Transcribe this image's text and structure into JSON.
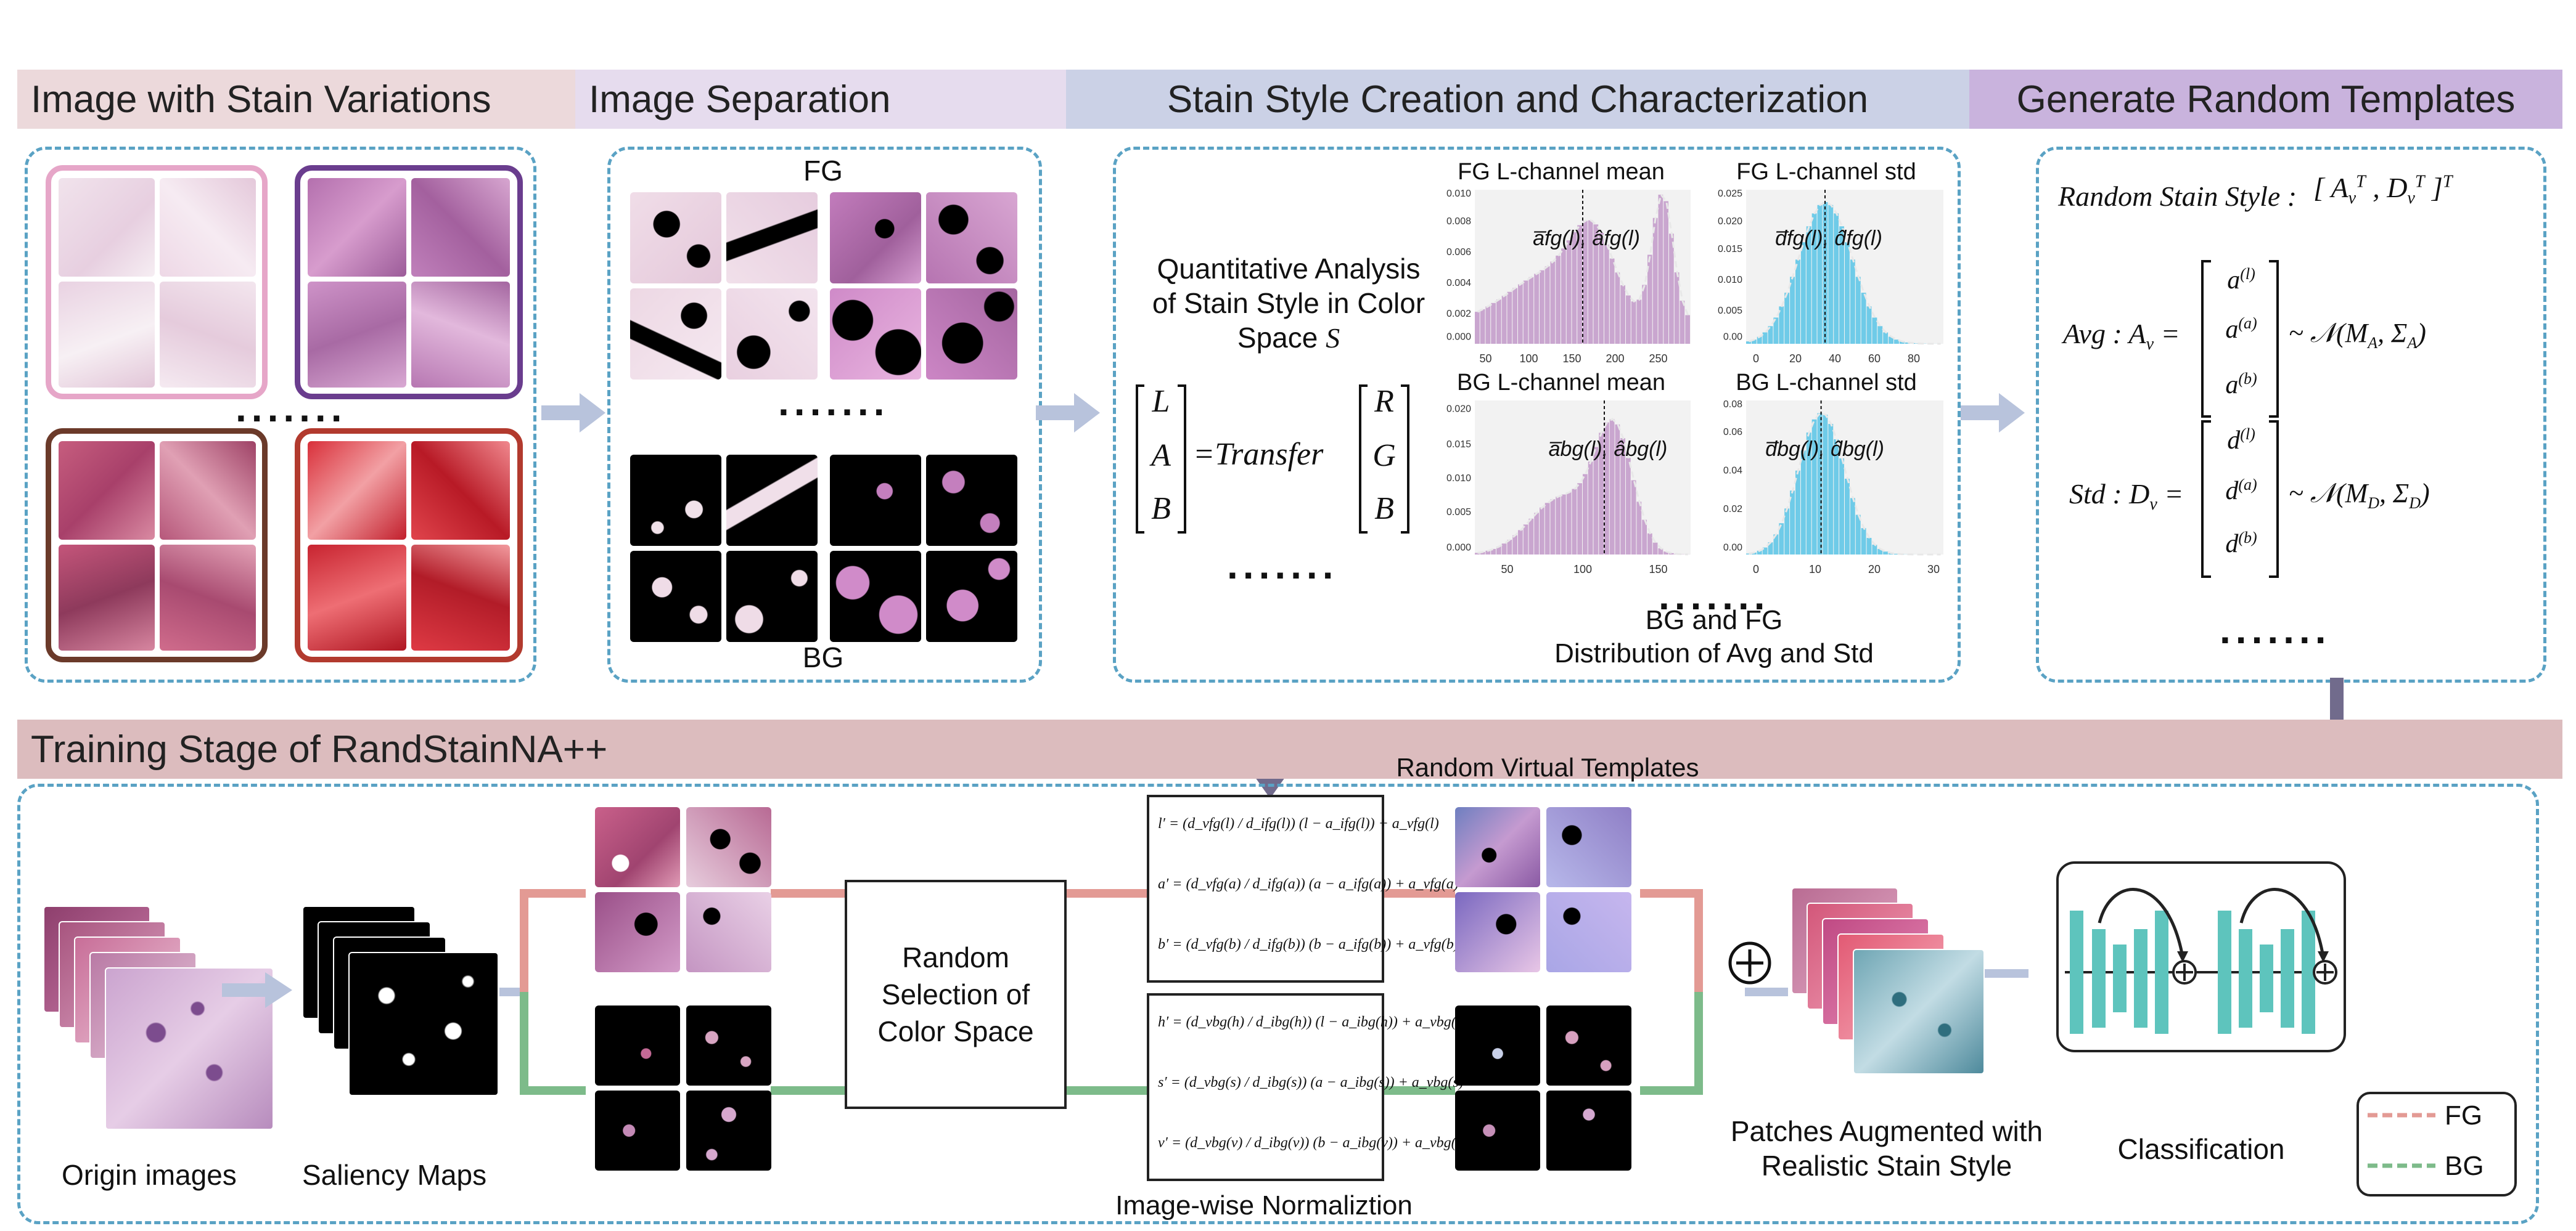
{
  "stages": {
    "image_with_stain_variations": "Image with Stain Variations",
    "image_separation": "Image Separation",
    "stain_style_creation": "Stain Style Creation and Characterization",
    "generate_random_templates": "Generate Random Templates",
    "training_stage": "Training Stage of RandStainNA++"
  },
  "separation": {
    "fg": "FG",
    "bg": "BG"
  },
  "characterization": {
    "analysis_text_1": "Quantitative Analysis",
    "analysis_text_2": "of Stain Style in Color",
    "analysis_text_3": "Space",
    "space_symbol": "S",
    "matrix_left": [
      "L",
      "A",
      "B"
    ],
    "matrix_right": [
      "R",
      "G",
      "B"
    ],
    "transfer_label": "=Transfer",
    "hist_titles": [
      "FG L-channel mean",
      "FG L-channel std",
      "BG L-channel mean",
      "BG L-channel std"
    ],
    "caption_1": "BG and FG",
    "caption_2": "Distribution of Avg and Std",
    "hist_annotations": [
      "a̅fg(l), âfg(l)",
      "d̅fg(l), d̂fg(l)",
      "a̅bg(l), âbg(l)",
      "d̅bg(l), d̂bg(l)"
    ]
  },
  "templates": {
    "random_style_label": "Random Stain Style :",
    "random_style_vector": "[A_v^T, D_v^T]^T",
    "avg_label": "Avg : A_v =",
    "avg_vector": [
      "a(l)",
      "a(a)",
      "a(b)"
    ],
    "avg_dist": "~ N(M_A, Σ_A)",
    "std_label": "Std : D_v =",
    "std_vector": [
      "d(l)",
      "d(a)",
      "d(b)"
    ],
    "std_dist": "~ N(M_D, Σ_D)"
  },
  "training": {
    "random_virtual_templates": "Random Virtual Templates",
    "origin_images": "Origin images",
    "saliency_maps": "Saliency Maps",
    "random_selection_1": "Random",
    "random_selection_2": "Selection of",
    "random_selection_3": "Color Space",
    "fg_equations": [
      "l′ = (d_vfg(l) / d_ifg(l)) (l − a_ifg(l)) + a_vfg(l)",
      "a′ = (d_vfg(a) / d_ifg(a)) (a − a_ifg(a)) + a_vfg(a)",
      "b′ = (d_vfg(b) / d_ifg(b)) (b − a_ifg(b)) + a_vfg(b)"
    ],
    "bg_equations": [
      "h′ = (d_vbg(h) / d_ibg(h)) (l − a_ibg(h)) + a_vbg(h)",
      "s′ = (d_vbg(s) / d_ibg(s)) (a − a_ibg(s)) + a_vbg(s)",
      "v′ = (d_vbg(v) / d_ibg(v)) (b − a_ibg(v)) + a_vbg(v)"
    ],
    "image_wise_normalization": "Image-wise Normaliztion",
    "patches_augmented_1": "Patches Augmented with",
    "patches_augmented_2": "Realistic Stain Style",
    "classification": "Classification",
    "legend": {
      "fg": "FG",
      "bg": "BG"
    },
    "plus_symbol": "⊕"
  },
  "colors": {
    "band_pink": "#ecd9db",
    "band_lavender": "#e6dcee",
    "band_blue": "#cbd1e6",
    "band_purple": "#c9b3dd",
    "band_training": "#dcbcbe",
    "dash_blue": "#5aa2c4",
    "fg_line": "#e39a94",
    "bg_line": "#7dbb8a",
    "hist_purple": "#c9a6cf",
    "hist_blue": "#6fcbe8",
    "net_teal": "#5ec4bd"
  }
}
